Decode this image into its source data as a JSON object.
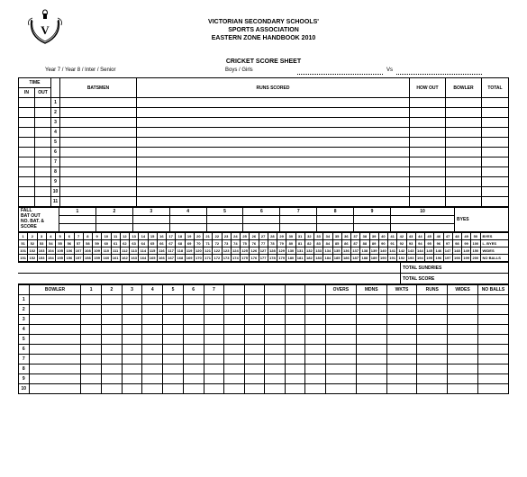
{
  "org": {
    "line1": "VICTORIAN SECONDARY SCHOOLS'",
    "line2": "SPORTS ASSOCIATION",
    "line3": "EASTERN ZONE HANDBOOK 2010"
  },
  "title": "CRICKET SCORE SHEET",
  "subtitle": {
    "year": "Year 7 / Year 8 / Inter / Senior",
    "gender": "Boys / Girls",
    "vs": "Vs"
  },
  "headers": {
    "time": "TIME",
    "in": "IN",
    "out": "OUT",
    "batsmen": "BATSMEN",
    "runs_scored": "RUNS SCORED",
    "how_out": "HOW OUT",
    "bowler": "BOWLER",
    "total": "TOTAL"
  },
  "batting_rows": 11,
  "fall": {
    "label": "FALL",
    "bat_out": "BAT OUT",
    "no_bat_score": "NO. BAT. & SCORE",
    "wickets": [
      "1",
      "2",
      "3",
      "4",
      "5",
      "6",
      "7",
      "8",
      "9",
      "10"
    ]
  },
  "score_grid": {
    "rows": 4,
    "start": 1,
    "per_row": 50,
    "sides": [
      "BYES",
      "L. BYES",
      "WIDES",
      "NO BALLS"
    ]
  },
  "totals": {
    "sundries": "TOTAL SUNDRIES",
    "score": "TOTAL SCORE"
  },
  "bowler_section": {
    "label": "BOWLER",
    "over_headers": [
      "1",
      "2",
      "3",
      "4",
      "5",
      "6",
      "7"
    ],
    "stats": [
      "OVERS",
      "MDNS",
      "WKTS",
      "RUNS",
      "WIDES",
      "NO BALLS"
    ],
    "rows": 10
  },
  "colors": {
    "border": "#000000",
    "bg": "#ffffff",
    "text": "#000000"
  }
}
